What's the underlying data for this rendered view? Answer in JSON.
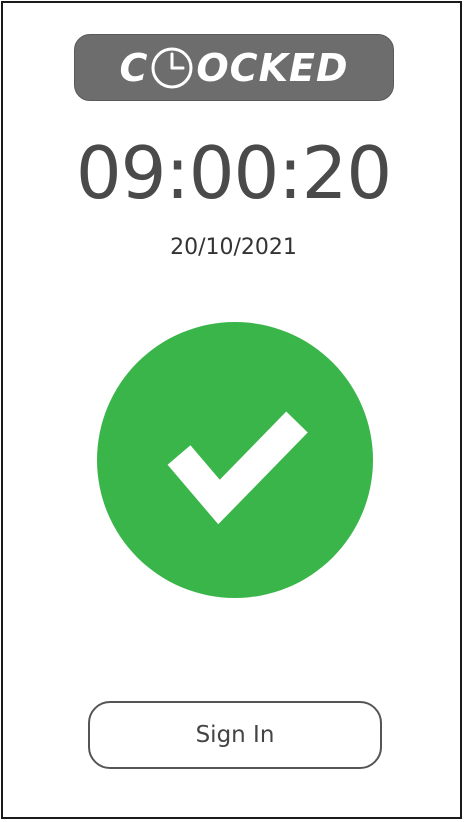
{
  "logo": {
    "text_before": "C",
    "clock_icon": "clock-icon",
    "text_after": "OCKED",
    "background": "#6d6d6d"
  },
  "clock": {
    "time": "09:00:20",
    "date": "20/10/2021"
  },
  "status": {
    "icon": "checkmark-icon",
    "color": "#39b54a"
  },
  "actions": {
    "sign_in_label": "Sign In"
  }
}
